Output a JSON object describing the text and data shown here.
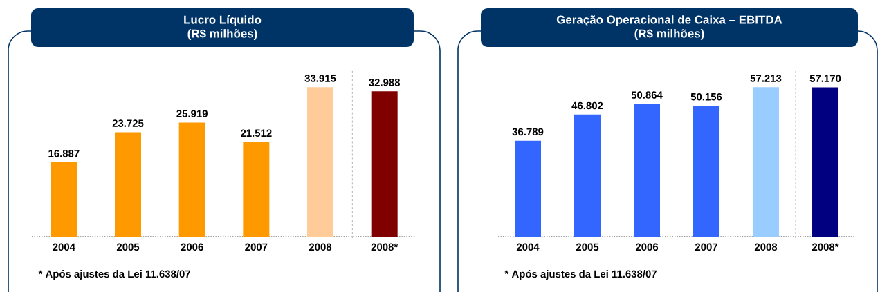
{
  "chart_data": [
    {
      "type": "bar",
      "title": "Lucro Líquido",
      "subtitle": "(R$ milhões)",
      "categories": [
        "2004",
        "2005",
        "2006",
        "2007",
        "2008",
        "2008*"
      ],
      "values": [
        16887,
        23725,
        25919,
        21512,
        33915,
        32988
      ],
      "value_labels": [
        "16.887",
        "23.725",
        "25.919",
        "21.512",
        "33.915",
        "32.988"
      ],
      "colors": [
        "#ff9900",
        "#ff9900",
        "#ff9900",
        "#ff9900",
        "#ffcc99",
        "#800000"
      ],
      "annotations": [
        "* Após ajustes da Lei 11.638/07"
      ]
    },
    {
      "type": "bar",
      "title": "Geração Operacional de Caixa – EBITDA",
      "subtitle": "(R$ milhões)",
      "categories": [
        "2004",
        "2005",
        "2006",
        "2007",
        "2008",
        "2008*"
      ],
      "values": [
        36789,
        46802,
        50864,
        50156,
        57213,
        57170
      ],
      "value_labels": [
        "36.789",
        "46.802",
        "50.864",
        "50.156",
        "57.213",
        "57.170"
      ],
      "colors": [
        "#3366ff",
        "#3366ff",
        "#3366ff",
        "#3366ff",
        "#99ccff",
        "#000080"
      ],
      "annotations": [
        "* Após ajustes da Lei 11.638/07"
      ]
    }
  ]
}
